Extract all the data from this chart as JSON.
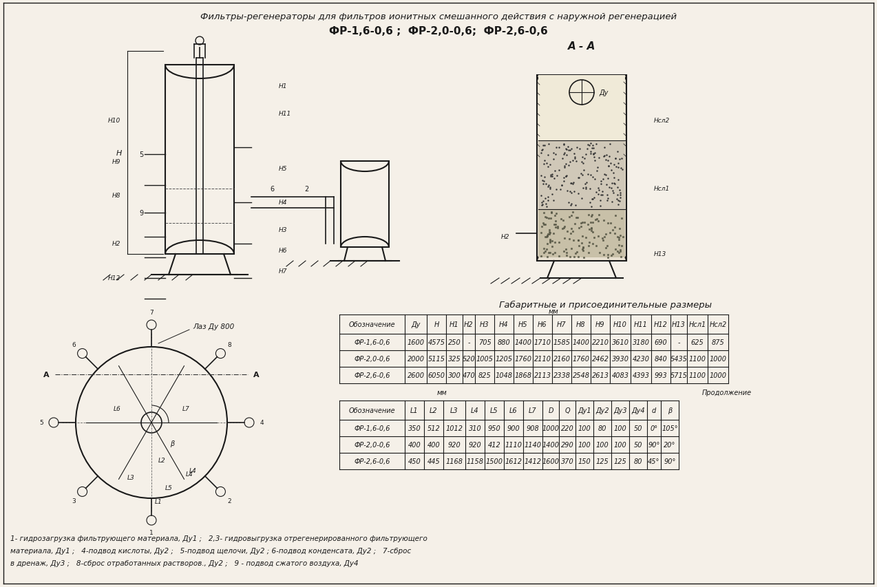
{
  "title_line1": "Фильтры-регенераторы для фильтров ионитных смешанного действия с наружной регенерацией",
  "title_line2": "ФР-1,6-0,6 ;  ФР-2,0-0,6;  ФР-2,6-0,6",
  "section_label": "А - А",
  "table_title": "Габаритные и присоединительные размеры",
  "table1_headers": [
    "Обозначение",
    "Ду",
    "Н",
    "Н1",
    "Н2",
    "Н3",
    "Н4",
    "Н5",
    "Н6",
    "Н7",
    "Н8",
    "Н9",
    "Н10",
    "Н11",
    "Н12",
    "Н13",
    "Нсл1",
    "Нсл2"
  ],
  "table1_rows": [
    [
      "ФР-1,6-0,6",
      "1600",
      "4575",
      "250",
      "-",
      "705",
      "880",
      "1400",
      "1710",
      "1585",
      "1400",
      "2210",
      "3610",
      "3180",
      "690",
      "-",
      "625",
      "875"
    ],
    [
      "ФР-2,0-0,6",
      "2000",
      "5115",
      "325",
      "520",
      "1005",
      "1205",
      "1760",
      "2110",
      "2160",
      "1760",
      "2462",
      "3930",
      "4230",
      "840",
      "5435",
      "1100",
      "1000"
    ],
    [
      "ФР-2,6-0,6",
      "2600",
      "6050",
      "300",
      "470",
      "825",
      "1048",
      "1868",
      "2113",
      "2338",
      "2548",
      "2613",
      "4083",
      "4393",
      "993",
      "5715",
      "1100",
      "1000"
    ]
  ],
  "mm_label": "мм",
  "cont_label": "Продолжение",
  "table2_headers": [
    "Обозначение",
    "L1",
    "L2",
    "L3",
    "L4",
    "L5",
    "L6",
    "L7",
    "D",
    "Q",
    "Ду1",
    "Ду2",
    "Ду3",
    "Ду4",
    "d",
    "β"
  ],
  "table2_rows": [
    [
      "ФР-1,6-0,6",
      "350",
      "512",
      "1012",
      "310",
      "950",
      "900",
      "908",
      "1000",
      "220",
      "100",
      "80",
      "100",
      "50",
      "0°",
      "105°"
    ],
    [
      "ФР-2,0-0,6",
      "400",
      "400",
      "920",
      "920",
      "412",
      "1110",
      "1140",
      "1400",
      "290",
      "100",
      "100",
      "100",
      "50",
      "90°",
      "20°"
    ],
    [
      "ФР-2,6-0,6",
      "450",
      "445",
      "1168",
      "1158",
      "1500",
      "1612",
      "1412",
      "1600",
      "370",
      "150",
      "125",
      "125",
      "80",
      "45°",
      "90°"
    ]
  ],
  "footnote_line1": "1- гидрозагрузка фильтрующего материала, Ду1 ;   2,3- гидровыгрузка отрегенерированного фильтрующего",
  "footnote_line2": "материала, Ду1 ;   4-подвод кислоты, Ду2 ;   5-подвод щелочи, Ду2 ; 6-подвод конденсата, Ду2 ;   7-сброс",
  "footnote_line3": "в дренаж, Ду3 ;   8-сброс отработанных растворов., Ду2 ;   9 - подвод сжатого воздуха, Ду4",
  "bg_color": "#f5f0e8",
  "line_color": "#1a1a1a",
  "text_color": "#1a1a1a"
}
